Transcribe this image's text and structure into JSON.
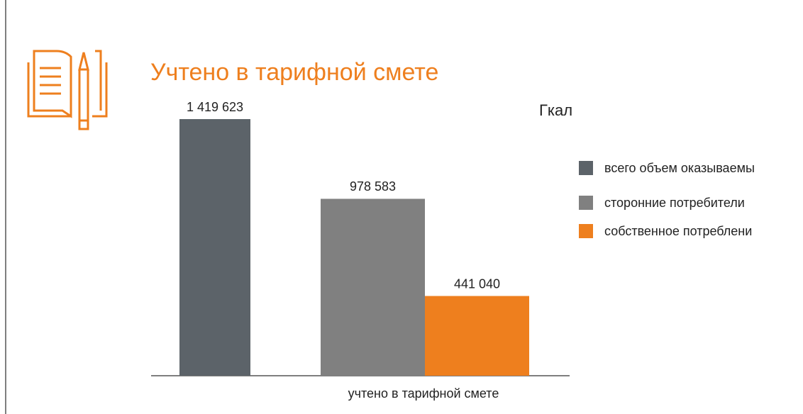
{
  "chart_data": {
    "type": "bar",
    "title": "Учтено в тарифной смете",
    "unit": "Гкал",
    "categories": [
      "учтено в тарифной смете"
    ],
    "series": [
      {
        "name": "всего объем оказываемы",
        "color": "#5c6369",
        "values": [
          1419623
        ],
        "value_labels": [
          "1 419 623"
        ]
      },
      {
        "name": "сторонние потребители",
        "color": "#808080",
        "values": [
          978583
        ],
        "value_labels": [
          "978 583"
        ]
      },
      {
        "name": "собственное потреблени",
        "color": "#ee7f1e",
        "values": [
          441040
        ],
        "value_labels": [
          "441 040"
        ]
      }
    ],
    "legend": "right"
  }
}
